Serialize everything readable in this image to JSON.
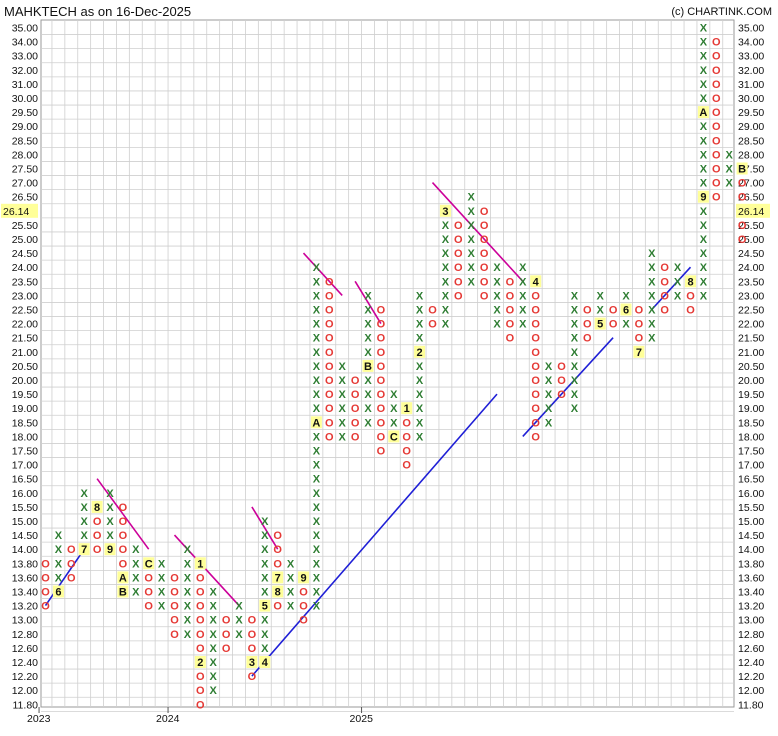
{
  "header": {
    "title": "MAHKTECH as on 16-Dec-2025",
    "credit": "(c) CHARTINK.COM"
  },
  "colors": {
    "x_mark": "#2e7d32",
    "o_mark": "#e53935",
    "resistance_line": "#cc0099",
    "support_line": "#1f1fd6",
    "grid": "#cfcfcf",
    "last_price_bg": "#ffff99"
  },
  "chart_data": {
    "type": "point-and-figure",
    "grid": true,
    "y_ticks": [
      "35.00",
      "34.00",
      "33.00",
      "32.00",
      "31.00",
      "30.00",
      "29.50",
      "29.00",
      "28.50",
      "28.00",
      "27.50",
      "27.00",
      "26.50",
      "26.00",
      "25.50",
      "25.00",
      "24.50",
      "24.00",
      "23.50",
      "23.00",
      "22.50",
      "22.00",
      "21.50",
      "21.00",
      "20.50",
      "20.00",
      "19.50",
      "19.00",
      "18.50",
      "18.00",
      "17.50",
      "17.00",
      "16.50",
      "16.00",
      "15.50",
      "15.00",
      "14.50",
      "14.00",
      "13.80",
      "13.60",
      "13.40",
      "13.20",
      "13.00",
      "12.80",
      "12.60",
      "12.40",
      "12.20",
      "12.00",
      "11.80"
    ],
    "x_labels": [
      {
        "column": 0,
        "label": "2023"
      },
      {
        "column": 10,
        "label": "2024"
      },
      {
        "column": 25,
        "label": "2025"
      }
    ],
    "last_price": "26.14",
    "columns": [
      {
        "type": "O",
        "top": "13.80",
        "cells": []
      },
      {
        "type": "X",
        "top": "14.50",
        "cells": [
          {
            "at": "13.40",
            "mark": "6"
          }
        ]
      },
      {
        "type": "O",
        "top": "14.00",
        "cells": []
      },
      {
        "type": "X",
        "top": "16.00",
        "cells": [
          {
            "at": "14.00",
            "mark": "7"
          }
        ]
      },
      {
        "type": "O",
        "top": "15.50",
        "cells": [
          {
            "at": "15.50",
            "mark": "8"
          }
        ]
      },
      {
        "type": "X",
        "top": "16.00",
        "cells": [
          {
            "at": "14.00",
            "mark": "9"
          }
        ]
      },
      {
        "type": "O",
        "top": "15.50",
        "cells": [
          {
            "at": "13.60",
            "mark": "A"
          },
          {
            "at": "13.40",
            "mark": "B"
          }
        ]
      },
      {
        "type": "X",
        "top": "14.00",
        "cells": []
      },
      {
        "type": "O",
        "top": "13.80",
        "cells": [
          {
            "at": "13.80",
            "mark": "C"
          }
        ]
      },
      {
        "type": "X",
        "top": "13.80",
        "cells": []
      },
      {
        "type": "O",
        "top": "13.60",
        "cells": []
      },
      {
        "type": "X",
        "top": "14.00",
        "cells": []
      },
      {
        "type": "O",
        "top": "13.80",
        "cells": [
          {
            "at": "13.80",
            "mark": "1"
          },
          {
            "at": "12.40",
            "mark": "2"
          }
        ]
      },
      {
        "type": "X",
        "top": "13.40",
        "cells": []
      },
      {
        "type": "O",
        "top": "13.00",
        "cells": []
      },
      {
        "type": "X",
        "top": "13.20",
        "cells": []
      },
      {
        "type": "O",
        "top": "13.00",
        "cells": [
          {
            "at": "12.40",
            "mark": "3"
          }
        ]
      },
      {
        "type": "X",
        "top": "15.00",
        "cells": [
          {
            "at": "12.40",
            "mark": "4"
          },
          {
            "at": "13.20",
            "mark": "5"
          }
        ]
      },
      {
        "type": "O",
        "top": "14.50",
        "cells": [
          {
            "at": "13.60",
            "mark": "7"
          },
          {
            "at": "13.40",
            "mark": "8"
          }
        ]
      },
      {
        "type": "X",
        "top": "13.80",
        "cells": []
      },
      {
        "type": "O",
        "top": "13.60",
        "cells": [
          {
            "at": "13.60",
            "mark": "9"
          }
        ]
      },
      {
        "type": "X",
        "top": "24.00",
        "cells": [
          {
            "at": "18.50",
            "mark": "A"
          }
        ]
      },
      {
        "type": "O",
        "top": "23.50",
        "cells": []
      },
      {
        "type": "X",
        "top": "20.50",
        "cells": []
      },
      {
        "type": "O",
        "top": "20.00",
        "cells": []
      },
      {
        "type": "X",
        "top": "23.00",
        "cells": [
          {
            "at": "20.50",
            "mark": "B"
          }
        ]
      },
      {
        "type": "O",
        "top": "22.50",
        "cells": []
      },
      {
        "type": "X",
        "top": "19.50",
        "cells": [
          {
            "at": "18.00",
            "mark": "C"
          }
        ]
      },
      {
        "type": "O",
        "top": "19.00",
        "cells": [
          {
            "at": "19.00",
            "mark": "1"
          }
        ]
      },
      {
        "type": "X",
        "top": "23.00",
        "cells": [
          {
            "at": "21.00",
            "mark": "2"
          }
        ]
      },
      {
        "type": "O",
        "top": "22.50",
        "cells": []
      },
      {
        "type": "X",
        "top": "26.00",
        "cells": [
          {
            "at": "26.00",
            "mark": "3"
          }
        ]
      },
      {
        "type": "O",
        "top": "25.50",
        "cells": []
      },
      {
        "type": "X",
        "top": "26.50",
        "cells": []
      },
      {
        "type": "O",
        "top": "26.00",
        "cells": []
      },
      {
        "type": "X",
        "top": "24.00",
        "cells": []
      },
      {
        "type": "O",
        "top": "23.50",
        "cells": []
      },
      {
        "type": "X",
        "top": "24.00",
        "cells": []
      },
      {
        "type": "O",
        "top": "23.50",
        "cells": [
          {
            "at": "23.50",
            "mark": "4"
          }
        ]
      },
      {
        "type": "X",
        "top": "20.50",
        "cells": []
      },
      {
        "type": "O",
        "top": "20.50",
        "cells": []
      },
      {
        "type": "X",
        "top": "23.00",
        "cells": []
      },
      {
        "type": "O",
        "top": "22.50",
        "cells": []
      },
      {
        "type": "X",
        "top": "23.00",
        "cells": [
          {
            "at": "22.00",
            "mark": "5"
          }
        ]
      },
      {
        "type": "O",
        "top": "22.50",
        "cells": []
      },
      {
        "type": "X",
        "top": "23.00",
        "cells": [
          {
            "at": "22.50",
            "mark": "6"
          }
        ]
      },
      {
        "type": "O",
        "top": "22.50",
        "cells": [
          {
            "at": "21.00",
            "mark": "7"
          }
        ]
      },
      {
        "type": "X",
        "top": "24.50",
        "cells": []
      },
      {
        "type": "O",
        "top": "24.00",
        "cells": []
      },
      {
        "type": "X",
        "top": "24.00",
        "cells": []
      },
      {
        "type": "O",
        "top": "23.50",
        "cells": [
          {
            "at": "23.50",
            "mark": "8"
          }
        ]
      },
      {
        "type": "X",
        "top": "35.00",
        "cells": [
          {
            "at": "29.50",
            "mark": "A"
          },
          {
            "at": "26.50",
            "mark": "9"
          }
        ]
      },
      {
        "type": "O",
        "top": "34.00",
        "cells": []
      },
      {
        "type": "X",
        "top": "28.00",
        "cells": []
      },
      {
        "type": "O",
        "top": "27.50",
        "cells": [
          {
            "at": "27.50",
            "mark": "B"
          }
        ]
      }
    ],
    "trend_lines": [
      {
        "kind": "support",
        "from": {
          "column": 0,
          "value": "13.20"
        },
        "to": {
          "column": 3,
          "value": "14.00"
        }
      },
      {
        "kind": "resistance",
        "from": {
          "column": 4,
          "value": "16.50"
        },
        "to": {
          "column": 8,
          "value": "14.00"
        }
      },
      {
        "kind": "resistance",
        "from": {
          "column": 10,
          "value": "14.50"
        },
        "to": {
          "column": 15,
          "value": "13.20"
        }
      },
      {
        "kind": "resistance",
        "from": {
          "column": 16,
          "value": "15.50"
        },
        "to": {
          "column": 18,
          "value": "14.00"
        }
      },
      {
        "kind": "support",
        "from": {
          "column": 16,
          "value": "12.20"
        },
        "to": {
          "column": 35,
          "value": "19.50"
        }
      },
      {
        "kind": "resistance",
        "from": {
          "column": 20,
          "value": "24.50"
        },
        "to": {
          "column": 23,
          "value": "23.00"
        }
      },
      {
        "kind": "resistance",
        "from": {
          "column": 24,
          "value": "23.50"
        },
        "to": {
          "column": 26,
          "value": "22.00"
        }
      },
      {
        "kind": "resistance",
        "from": {
          "column": 30,
          "value": "27.00"
        },
        "to": {
          "column": 37,
          "value": "23.50"
        }
      },
      {
        "kind": "support",
        "from": {
          "column": 37,
          "value": "18.00"
        },
        "to": {
          "column": 44,
          "value": "21.50"
        }
      },
      {
        "kind": "support",
        "from": {
          "column": 47,
          "value": "22.50"
        },
        "to": {
          "column": 50,
          "value": "24.00"
        }
      }
    ]
  }
}
